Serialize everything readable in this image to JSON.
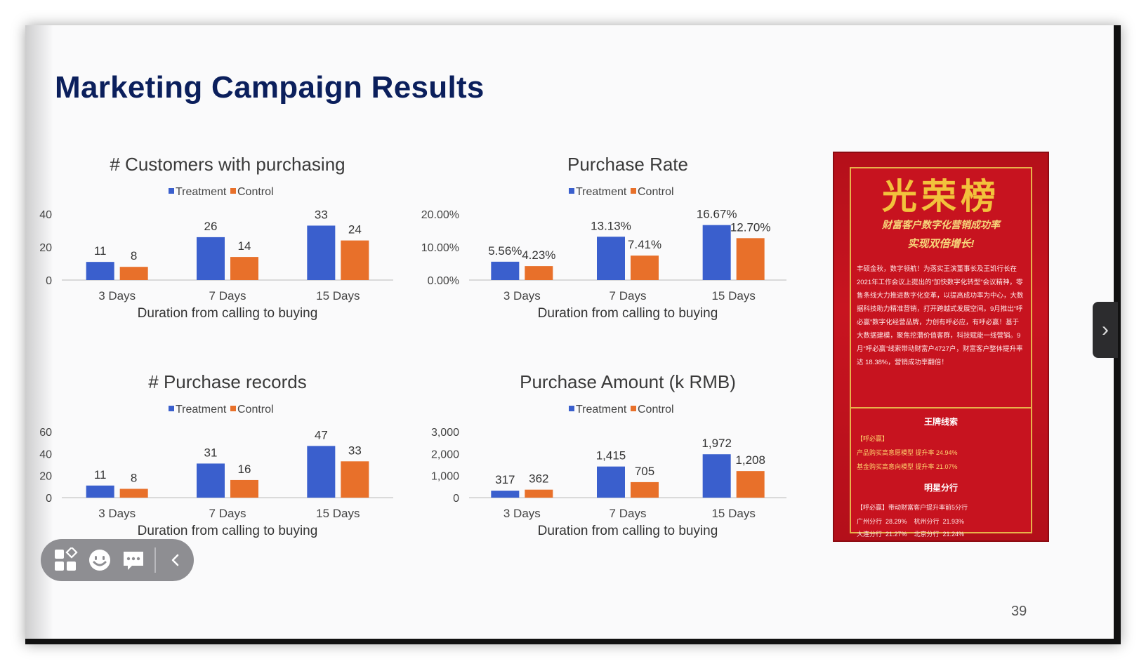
{
  "slide": {
    "title": "Marketing Campaign Results",
    "page_number": "39"
  },
  "legend": {
    "treatment": "Treatment",
    "control": "Control"
  },
  "colors": {
    "treatment": "#3a5fcd",
    "control": "#e8702a",
    "title": "#0b1f5c"
  },
  "chart_data": [
    {
      "type": "bar",
      "title": "# Customers with purchasing",
      "xlabel": "Duration from calling to buying",
      "categories": [
        "3 Days",
        "7 Days",
        "15 Days"
      ],
      "series": [
        {
          "name": "Treatment",
          "values": [
            11,
            26,
            33
          ],
          "labels": [
            "11",
            "26",
            "33"
          ]
        },
        {
          "name": "Control",
          "values": [
            8,
            14,
            24
          ],
          "labels": [
            "8",
            "14",
            "24"
          ]
        }
      ],
      "ylim": [
        0,
        40
      ],
      "yticks": [
        "40",
        "20",
        "0"
      ],
      "legend": "top-center",
      "grid": false
    },
    {
      "type": "bar",
      "title": "Purchase Rate",
      "xlabel": "Duration from calling to buying",
      "categories": [
        "3 Days",
        "7 Days",
        "15 Days"
      ],
      "series": [
        {
          "name": "Treatment",
          "values": [
            5.56,
            13.13,
            16.67
          ],
          "labels": [
            "5.56%",
            "13.13%",
            "16.67%"
          ]
        },
        {
          "name": "Control",
          "values": [
            4.23,
            7.41,
            12.7
          ],
          "labels": [
            "4.23%",
            "7.41%",
            "12.70%"
          ]
        }
      ],
      "ylim": [
        0,
        20
      ],
      "yticks": [
        "20.00%",
        "10.00%",
        "0.00%"
      ],
      "legend": "top-center",
      "grid": false
    },
    {
      "type": "bar",
      "title": "# Purchase records",
      "xlabel": "Duration from calling to buying",
      "categories": [
        "3 Days",
        "7 Days",
        "15 Days"
      ],
      "series": [
        {
          "name": "Treatment",
          "values": [
            11,
            31,
            47
          ],
          "labels": [
            "11",
            "31",
            "47"
          ]
        },
        {
          "name": "Control",
          "values": [
            8,
            16,
            33
          ],
          "labels": [
            "8",
            "16",
            "33"
          ]
        }
      ],
      "ylim": [
        0,
        60
      ],
      "yticks": [
        "60",
        "40",
        "20",
        "0"
      ],
      "legend": "top-center",
      "grid": false
    },
    {
      "type": "bar",
      "title": "Purchase Amount (k RMB)",
      "xlabel": "Duration from calling to buying",
      "categories": [
        "3 Days",
        "7 Days",
        "15 Days"
      ],
      "series": [
        {
          "name": "Treatment",
          "values": [
            317,
            1415,
            1972
          ],
          "labels": [
            "317",
            "1,415",
            "1,972"
          ]
        },
        {
          "name": "Control",
          "values": [
            362,
            705,
            1208
          ],
          "labels": [
            "362",
            "705",
            "1,208"
          ]
        }
      ],
      "ylim": [
        0,
        3000
      ],
      "yticks": [
        "3,000",
        "2,000",
        "1,000",
        "0"
      ],
      "legend": "top-center",
      "grid": false
    }
  ],
  "photo": {
    "title": "光荣榜",
    "subtitle1": "财富客户数字化营销成功率",
    "subtitle2": "实现双倍增长!",
    "body": "丰硕金秋，数字领航！为落实王滨董事长及王凯行长在2021年工作会议上提出的“加快数字化转型”会议精神，零售条线大力推进数字化变革，以提高成功率为中心，大数据科技助力精准营销，打开跨越式发展空间。9月推出“呼必赢”数字化经营品牌，力创有呼必应，有呼必赢！基于大数据建模，聚焦挖潜价值客群，科技赋能一线营销。9月“呼必赢”线索带动财富户4727户，财富客户整体提升率达 18.38%，营销成功率翻倍！",
    "section1_title": "王牌线索",
    "section1_tag": "【呼必赢】",
    "section1_line1": "产品购买高意愿模型 提升率 24.94%",
    "section1_line2": "基金购买高意向模型 提升率 21.07%",
    "section2_title": "明星分行",
    "section2_header": "【呼必赢】带动财富客户提升率前5分行",
    "section2_row1": "广州分行  28.29%    杭州分行  21.93%",
    "section2_row2": "大连分行  21.27%    北京分行  21.24%"
  }
}
